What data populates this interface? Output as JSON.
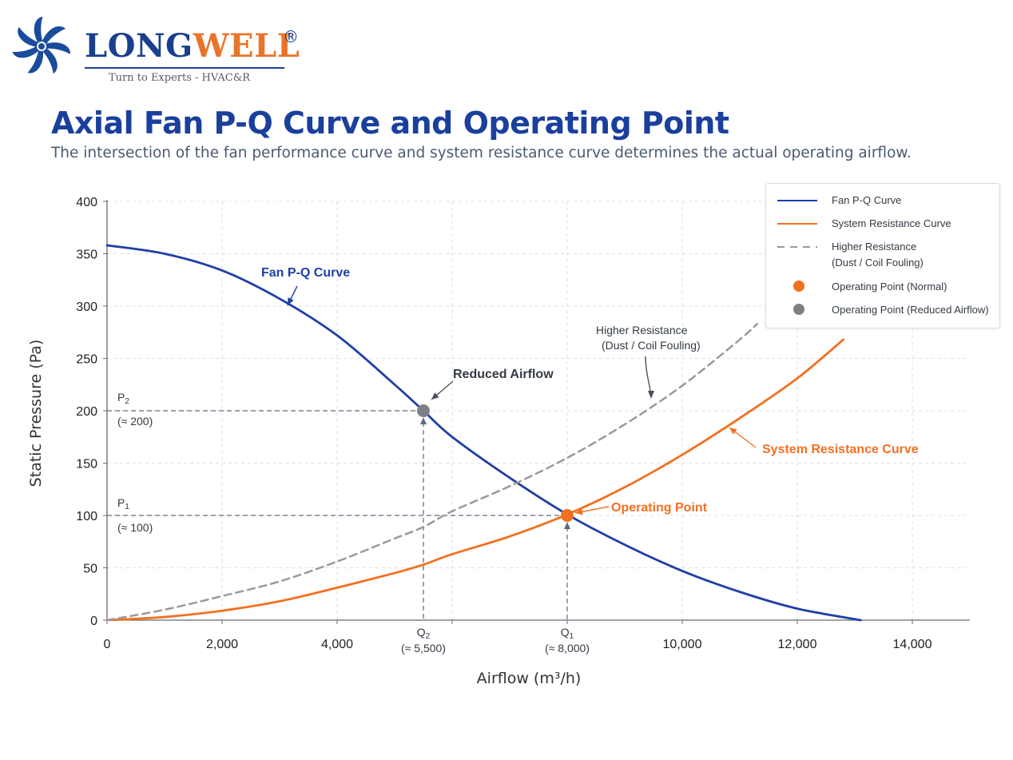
{
  "logo": {
    "name_part1": "LONG",
    "name_part2": "WELL",
    "registered": "®",
    "tagline": "Turn to Experts - HVAC&R"
  },
  "header": {
    "title": "Axial Fan P-Q Curve and Operating Point",
    "subtitle": "The intersection of the fan performance curve and system resistance curve determines the actual operating airflow."
  },
  "chart_data": {
    "type": "line",
    "xlabel": "Airflow (m³/h)",
    "ylabel": "Static Pressure (Pa)",
    "xlim": [
      0,
      15000
    ],
    "ylim": [
      0,
      400
    ],
    "x_ticks": [
      0,
      2000,
      4000,
      6000,
      8000,
      10000,
      12000,
      14000
    ],
    "x_tick_labels": [
      "0",
      "2,000",
      "4,000",
      "",
      "",
      "10,000",
      "12,000",
      "14,000"
    ],
    "y_ticks": [
      0,
      50,
      100,
      150,
      200,
      250,
      300,
      350,
      400
    ],
    "y_tick_labels": [
      "0",
      "50",
      "100",
      "150",
      "200",
      "250",
      "300",
      "350",
      "400"
    ],
    "grid": true,
    "legend_position": "top-right",
    "series": [
      {
        "name": "Fan P-Q Curve",
        "color": "#1f3fa6",
        "style": "solid",
        "x": [
          0,
          1000,
          2000,
          3000,
          4000,
          5000,
          5500,
          6000,
          7000,
          8000,
          9000,
          10000,
          11000,
          12000,
          13100
        ],
        "y": [
          358,
          350,
          334,
          307,
          272,
          225,
          200,
          175,
          136,
          101,
          72,
          47,
          27,
          11,
          0
        ]
      },
      {
        "name": "System Resistance Curve",
        "color": "#f37021",
        "style": "solid",
        "x": [
          0,
          1000,
          2000,
          3000,
          4000,
          5000,
          5500,
          6000,
          7000,
          8000,
          9000,
          10000,
          11000,
          12000,
          12800
        ],
        "y": [
          0,
          3,
          9,
          18,
          31,
          45,
          53,
          63,
          80,
          101,
          127,
          158,
          193,
          231,
          268
        ]
      },
      {
        "name": "Higher Resistance (Dust / Coil Fouling)",
        "color": "#9a9a9a",
        "style": "dashed",
        "x": [
          0,
          1000,
          2000,
          3000,
          4000,
          5000,
          5500,
          6000,
          7000,
          8000,
          9000,
          10000,
          11000,
          11300
        ],
        "y": [
          0,
          10,
          23,
          37,
          56,
          78,
          89,
          104,
          128,
          155,
          187,
          224,
          268,
          283
        ]
      }
    ],
    "points": [
      {
        "name": "Operating Point (Normal)",
        "x": 8000,
        "y": 100,
        "color": "#f37021"
      },
      {
        "name": "Operating Point (Reduced Airflow)",
        "x": 5500,
        "y": 200,
        "color": "#7d7f84"
      }
    ],
    "legend": [
      {
        "label": "Fan P-Q Curve",
        "kind": "line",
        "color": "#1f3fa6"
      },
      {
        "label": "System Resistance Curve",
        "kind": "line",
        "color": "#f37021"
      },
      {
        "label": "Higher Resistance",
        "label2": "(Dust / Coil Fouling)",
        "kind": "dashed",
        "color": "#9a9a9a"
      },
      {
        "label": "Operating Point (Normal)",
        "kind": "dot",
        "color": "#f37021"
      },
      {
        "label": "Operating Point (Reduced Airflow)",
        "kind": "dot",
        "color": "#7d7f84"
      }
    ],
    "annotations": {
      "fan_curve": "Fan P-Q Curve",
      "reduced_airflow": "Reduced Airflow",
      "higher_resistance_line1": "Higher Resistance",
      "higher_resistance_line2": "(Dust / Coil Fouling)",
      "system_curve": "System Resistance Curve",
      "operating_point": "Operating Point",
      "p2_label": "P",
      "p2_sub": "2",
      "p2_value": "(≈ 200)",
      "p1_label": "P",
      "p1_sub": "1",
      "p1_value": "(≈ 100)",
      "q2_label": "Q",
      "q2_sub": "2",
      "q2_value": "(≈ 5,500)",
      "q1_label": "Q",
      "q1_sub": "1",
      "q1_value": "(≈ 8,000)"
    }
  }
}
